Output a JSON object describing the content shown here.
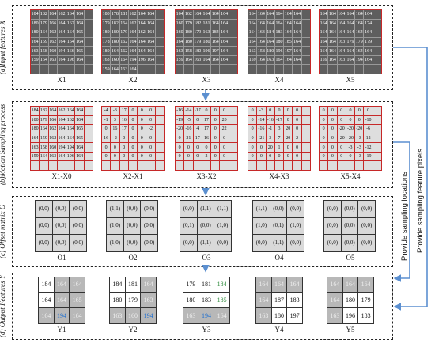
{
  "panels": {
    "a": "(a)Input features X",
    "b": "(b)Motion Sampling process",
    "c": "(c) Offset matrix O",
    "d": "(d) Output Features Y"
  },
  "captions": {
    "a": [
      "X1",
      "X2",
      "X3",
      "X4",
      "X5"
    ],
    "b": [
      "X1-X0",
      "X2-X1",
      "X3-X2",
      "X4-X3",
      "X5-X4"
    ],
    "c": [
      "O1",
      "O2",
      "O3",
      "O4",
      "O5"
    ],
    "d": [
      "Y1",
      "Y2",
      "Y3",
      "Y4",
      "Y5"
    ]
  },
  "side_labels": {
    "locations": "Provide sampling locations",
    "pixels": "Provide sampling feature pixels"
  },
  "colors": {
    "frame": "#c62828",
    "arrow": "#5b8fd0",
    "blue_text": "#1e6fd0",
    "green_text": "#2e8b3c"
  },
  "input_grids": [
    [
      [
        "184",
        "182",
        "164",
        "162",
        "164",
        "164",
        ""
      ],
      [
        "180",
        "179",
        "166",
        "164",
        "162",
        "164",
        ""
      ],
      [
        "180",
        "164",
        "162",
        "164",
        "164",
        "165",
        ""
      ],
      [
        "164",
        "159",
        "162",
        "164",
        "164",
        "164",
        ""
      ],
      [
        "163",
        "158",
        "160",
        "194",
        "166",
        "165",
        ""
      ],
      [
        "159",
        "164",
        "163",
        "164",
        "196",
        "164",
        ""
      ],
      [
        "",
        "",
        "",
        "",
        "",
        "",
        ""
      ]
    ],
    [
      [
        "180",
        "178",
        "181",
        "162",
        "164",
        "164",
        ""
      ],
      [
        "179",
        "182",
        "164",
        "162",
        "164",
        "164",
        ""
      ],
      [
        "180",
        "180",
        "179",
        "164",
        "162",
        "164",
        ""
      ],
      [
        "178",
        "180",
        "162",
        "164",
        "164",
        "164",
        ""
      ],
      [
        "180",
        "164",
        "162",
        "164",
        "164",
        "164",
        ""
      ],
      [
        "163",
        "160",
        "164",
        "194",
        "196",
        "164",
        ""
      ],
      [
        "159",
        "164",
        "163",
        "164",
        "",
        "",
        ""
      ]
    ],
    [
      [
        "164",
        "162",
        "164",
        "164",
        "164",
        "164",
        ""
      ],
      [
        "160",
        "179",
        "182",
        "181",
        "164",
        "164",
        ""
      ],
      [
        "160",
        "180",
        "179",
        "163",
        "184",
        "164",
        ""
      ],
      [
        "164",
        "180",
        "179",
        "180",
        "164",
        "164",
        ""
      ],
      [
        "163",
        "158",
        "180",
        "196",
        "197",
        "164",
        ""
      ],
      [
        "159",
        "164",
        "163",
        "164",
        "164",
        "164",
        ""
      ],
      [
        "",
        "",
        "",
        "",
        "",
        "",
        ""
      ]
    ],
    [
      [
        "164",
        "164",
        "164",
        "164",
        "164",
        "164",
        ""
      ],
      [
        "164",
        "164",
        "164",
        "164",
        "164",
        "164",
        ""
      ],
      [
        "164",
        "163",
        "184",
        "183",
        "164",
        "164",
        ""
      ],
      [
        "164",
        "164",
        "164",
        "180",
        "185",
        "164",
        ""
      ],
      [
        "163",
        "158",
        "180",
        "196",
        "197",
        "164",
        ""
      ],
      [
        "159",
        "164",
        "163",
        "164",
        "164",
        "164",
        ""
      ],
      [
        "",
        "",
        "",
        "",
        "",
        "",
        ""
      ]
    ],
    [
      [
        "164",
        "164",
        "164",
        "164",
        "164",
        "164",
        ""
      ],
      [
        "164",
        "164",
        "164",
        "164",
        "164",
        "174",
        ""
      ],
      [
        "164",
        "164",
        "164",
        "164",
        "164",
        "164",
        ""
      ],
      [
        "164",
        "164",
        "163",
        "179",
        "179",
        "179",
        ""
      ],
      [
        "164",
        "164",
        "164",
        "164",
        "164",
        "164",
        ""
      ],
      [
        "159",
        "164",
        "163",
        "164",
        "194",
        "164",
        ""
      ],
      [
        "",
        "",
        "",
        "",
        "",
        "",
        ""
      ]
    ]
  ],
  "diff_grids": [
    [
      [
        "184",
        "182",
        "164",
        "162",
        "164",
        "164",
        ""
      ],
      [
        "180",
        "179",
        "166",
        "164",
        "162",
        "164",
        ""
      ],
      [
        "180",
        "164",
        "162",
        "164",
        "164",
        "165",
        ""
      ],
      [
        "164",
        "159",
        "162",
        "164",
        "164",
        "165",
        ""
      ],
      [
        "163",
        "158",
        "160",
        "194",
        "194",
        "164",
        ""
      ],
      [
        "159",
        "164",
        "163",
        "164",
        "196",
        "164",
        ""
      ],
      [
        "",
        "",
        "",
        "",
        "",
        "",
        ""
      ]
    ],
    [
      [
        "-4",
        "-3",
        "17",
        "0",
        "0",
        "0",
        ""
      ],
      [
        "-1",
        "3",
        "16",
        "0",
        "0",
        "0",
        ""
      ],
      [
        "0",
        "16",
        "17",
        "0",
        "0",
        "-2",
        ""
      ],
      [
        "16",
        "-2",
        "0",
        "0",
        "0",
        "0",
        ""
      ],
      [
        "0",
        "0",
        "0",
        "0",
        "0",
        "0",
        ""
      ],
      [
        "0",
        "0",
        "0",
        "0",
        "0",
        "0",
        ""
      ],
      [
        "",
        "",
        "",
        "",
        "",
        "",
        ""
      ]
    ],
    [
      [
        "-16",
        "-14",
        "-17",
        "0",
        "0",
        "0",
        ""
      ],
      [
        "-19",
        "-5",
        "0",
        "17",
        "0",
        "20",
        ""
      ],
      [
        "-20",
        "-16",
        "4",
        "17",
        "0",
        "22",
        ""
      ],
      [
        "0",
        "21",
        "17",
        "16",
        "0",
        "0",
        ""
      ],
      [
        "0",
        "0",
        "0",
        "0",
        "0",
        "0",
        ""
      ],
      [
        "0",
        "0",
        "0",
        "2",
        "0",
        "0",
        ""
      ],
      [
        "",
        "",
        "",
        "",
        "",
        "",
        ""
      ]
    ],
    [
      [
        "0",
        "-3",
        "0",
        "0",
        "0",
        "0",
        ""
      ],
      [
        "0",
        "-14",
        "-16",
        "-17",
        "0",
        "0",
        ""
      ],
      [
        "0",
        "-16",
        "-1",
        "3",
        "20",
        "0",
        ""
      ],
      [
        "0",
        "-21",
        "3",
        "7",
        "20",
        "2",
        ""
      ],
      [
        "0",
        "0",
        "20",
        "1",
        "0",
        "0",
        ""
      ],
      [
        "0",
        "0",
        "0",
        "0",
        "0",
        "0",
        ""
      ],
      [
        "",
        "",
        "",
        "",
        "",
        "",
        ""
      ]
    ],
    [
      [
        "0",
        "0",
        "0",
        "0",
        "0",
        "0",
        ""
      ],
      [
        "0",
        "0",
        "0",
        "0",
        "0",
        "-10",
        ""
      ],
      [
        "0",
        "0",
        "-20",
        "-20",
        "-20",
        "-6",
        ""
      ],
      [
        "0",
        "0",
        "-20",
        "-20",
        "-3",
        "12",
        ""
      ],
      [
        "0",
        "0",
        "0",
        "-3",
        "-3",
        "-12",
        ""
      ],
      [
        "0",
        "0",
        "0",
        "0",
        "-3",
        "-19",
        ""
      ],
      [
        "",
        "",
        "",
        "",
        "",
        "",
        ""
      ]
    ]
  ],
  "offset_grids": [
    [
      [
        "(0,0)",
        "(0,0)",
        "(0,0)"
      ],
      [
        "(0,0)",
        "(0,0)",
        "(0,0)"
      ],
      [
        "(0,0)",
        "(0,0)",
        "(0,0)"
      ]
    ],
    [
      [
        "(1,1)",
        "(0,0)",
        "(0,0)"
      ],
      [
        "(1,0)",
        "(0,0)",
        "(0,0)"
      ],
      [
        "(1,0)",
        "(0,0)",
        "(0,0)"
      ]
    ],
    [
      [
        "(0,0)",
        "(1,1)",
        "(1,1)"
      ],
      [
        "(0,1)",
        "(0,0)",
        "(1,0)"
      ],
      [
        "(0,0)",
        "(1,1)",
        "(0,0)"
      ]
    ],
    [
      [
        "(1,1)",
        "(0,0)",
        "(0,0)"
      ],
      [
        "(1,0)",
        "(0,1)",
        "(1,0)"
      ],
      [
        "(0,0)",
        "(1,1)",
        "(0,0)"
      ]
    ],
    [
      [
        "(0,0)",
        "(0,0)",
        "(0,0)"
      ],
      [
        "(0,0)",
        "(0,0)",
        "(0,0)"
      ],
      [
        "(0,0)",
        "(0,0)",
        "(0,0)"
      ]
    ]
  ],
  "output_grids": [
    [
      [
        "184",
        "164",
        "164"
      ],
      [
        "164",
        "164",
        "165"
      ],
      [
        "164",
        "194",
        "164"
      ]
    ],
    [
      [
        "184",
        "181",
        "164"
      ],
      [
        "180",
        "179",
        "163"
      ],
      [
        "163",
        "160",
        "194"
      ]
    ],
    [
      [
        "179",
        "181",
        "184"
      ],
      [
        "180",
        "183",
        "185"
      ],
      [
        "163",
        "194",
        "164"
      ]
    ],
    [
      [
        "164",
        "164",
        "164"
      ],
      [
        "164",
        "187",
        "183"
      ],
      [
        "163",
        "180",
        "197"
      ]
    ],
    [
      [
        "164",
        "164",
        "164"
      ],
      [
        "164",
        "180",
        "179"
      ],
      [
        "163",
        "196",
        "183"
      ]
    ]
  ],
  "output_colors": [
    [
      [
        "k",
        "g",
        "g"
      ],
      [
        "k",
        "g",
        "g"
      ],
      [
        "g",
        "b",
        "g"
      ]
    ],
    [
      [
        "k",
        "k",
        "g"
      ],
      [
        "k",
        "k",
        "g"
      ],
      [
        "g",
        "g",
        "b"
      ]
    ],
    [
      [
        "k",
        "k",
        "gr"
      ],
      [
        "k",
        "k",
        "gr"
      ],
      [
        "g",
        "b",
        "g"
      ]
    ],
    [
      [
        "g",
        "g",
        "g"
      ],
      [
        "g",
        "k",
        "k"
      ],
      [
        "g",
        "k",
        "k"
      ]
    ],
    [
      [
        "g",
        "g",
        "g"
      ],
      [
        "g",
        "k",
        "k"
      ],
      [
        "g",
        "k",
        "k"
      ]
    ]
  ]
}
